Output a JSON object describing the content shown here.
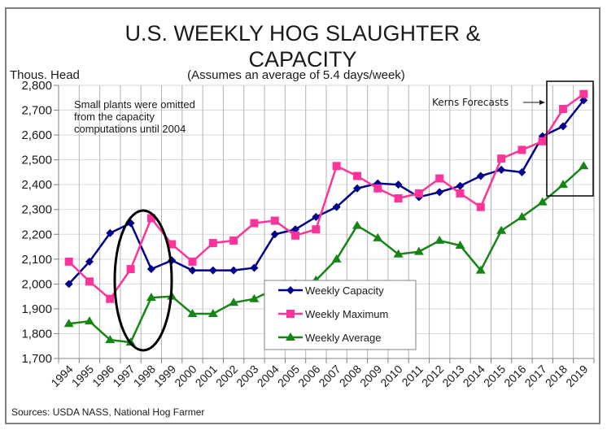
{
  "chart_data": {
    "type": "line",
    "title_line1": "U.S. WEEKLY HOG SLAUGHTER &",
    "title_line2": "CAPACITY",
    "subtitle": "(Assumes an average of 5.4 days/week)",
    "ylabel": "Thous. Head",
    "xlabel": "",
    "ylim": [
      1700,
      2800
    ],
    "yticks": [
      1700,
      1800,
      1900,
      2000,
      2100,
      2200,
      2300,
      2400,
      2500,
      2600,
      2700,
      2800
    ],
    "ytick_labels": [
      "1,700",
      "1,800",
      "1,900",
      "2,000",
      "2,100",
      "2,200",
      "2,300",
      "2,400",
      "2,500",
      "2,600",
      "2,700",
      "2,800"
    ],
    "grid": true,
    "categories": [
      "1994",
      "1995",
      "1996",
      "1997",
      "1998",
      "1999",
      "2000",
      "2001",
      "2002",
      "2003",
      "2004",
      "2005",
      "2006",
      "2007",
      "2008",
      "2009",
      "2010",
      "2011",
      "2012",
      "2013",
      "2014",
      "2015",
      "2016",
      "2017",
      "2018",
      "2019"
    ],
    "series": [
      {
        "name": "Weekly Capacity",
        "color": "#00008b",
        "marker": "diamond",
        "values": [
          2000,
          2090,
          2205,
          2245,
          2060,
          2095,
          2055,
          2055,
          2055,
          2065,
          2200,
          2220,
          2270,
          2310,
          2385,
          2405,
          2400,
          2350,
          2370,
          2395,
          2435,
          2460,
          2450,
          2595,
          2635,
          2740
        ]
      },
      {
        "name": "Weekly Maximum",
        "color": "#ff3399",
        "marker": "square",
        "values": [
          2090,
          2010,
          1940,
          2060,
          2265,
          2160,
          2090,
          2165,
          2175,
          2245,
          2255,
          2195,
          2220,
          2475,
          2435,
          2385,
          2345,
          2365,
          2425,
          2365,
          2310,
          2505,
          2540,
          2575,
          2705,
          2765
        ]
      },
      {
        "name": "Weekly Average",
        "color": "#168516",
        "marker": "triangle",
        "values": [
          1840,
          1850,
          1775,
          1765,
          1945,
          1950,
          1880,
          1880,
          1925,
          1940,
          1980,
          2000,
          2015,
          2100,
          2235,
          2185,
          2120,
          2130,
          2175,
          2155,
          2055,
          2215,
          2270,
          2330,
          2400,
          2475
        ]
      }
    ],
    "legend": {
      "placement": "bottom-center",
      "entries": [
        "Weekly Capacity",
        "Weekly Maximum",
        "Weekly Average"
      ]
    },
    "annotations": {
      "note": [
        "Small plants were omitted",
        "from the capacity",
        "computations until 2004"
      ],
      "forecast_label": "Kerns Forecasts",
      "forecast_years": [
        "2018",
        "2019"
      ],
      "highlight_years": [
        "1997",
        "1998"
      ]
    },
    "source": "Sources:  USDA NASS, National Hog Farmer"
  }
}
